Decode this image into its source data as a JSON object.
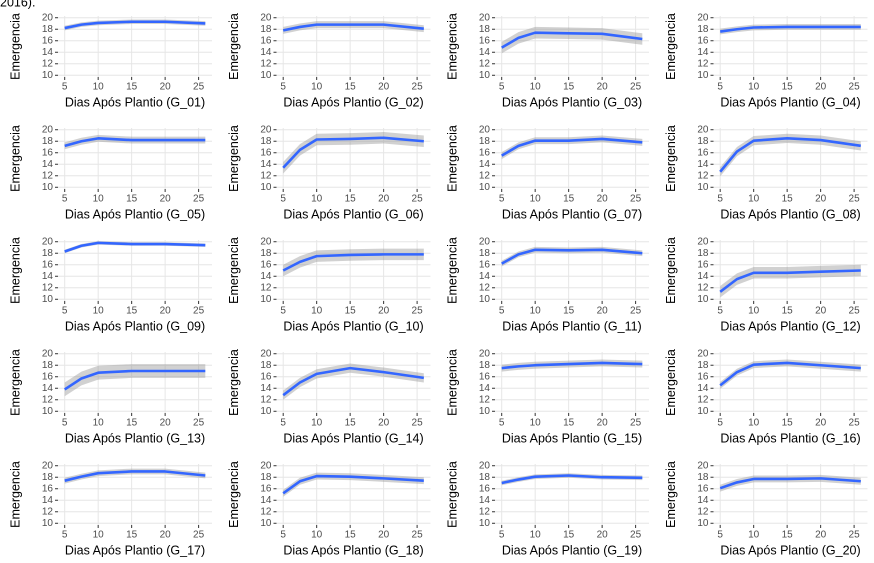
{
  "note": "2016).",
  "chart_data": [
    {
      "type": "line",
      "xlabel": "Dias Após Plantio (G_01)",
      "ylabel": "Emergencia",
      "x": [
        5,
        7.5,
        10,
        15,
        20,
        26
      ],
      "values": [
        18.2,
        18.8,
        19.1,
        19.3,
        19.3,
        19.0
      ],
      "lower": [
        17.8,
        18.4,
        18.7,
        18.9,
        18.9,
        18.6
      ],
      "upper": [
        18.6,
        19.2,
        19.5,
        19.7,
        19.7,
        19.4
      ],
      "color": "#3366ff",
      "xlim": [
        4,
        27
      ],
      "ylim": [
        9.7,
        20.3
      ],
      "xticks": [
        5,
        10,
        15,
        20,
        25
      ],
      "yticks": [
        10,
        12,
        14,
        16,
        18,
        20
      ],
      "grid": true
    },
    {
      "type": "line",
      "xlabel": "Dias Após Plantio (G_02)",
      "ylabel": "Emergencia",
      "x": [
        5,
        7.5,
        10,
        15,
        20,
        26
      ],
      "values": [
        17.8,
        18.4,
        18.8,
        18.8,
        18.8,
        18.1
      ],
      "lower": [
        17.2,
        17.8,
        18.2,
        18.2,
        18.2,
        17.5
      ],
      "upper": [
        18.4,
        19.0,
        19.4,
        19.4,
        19.4,
        18.7
      ],
      "color": "#3366ff",
      "xlim": [
        4,
        27
      ],
      "ylim": [
        9.7,
        20.3
      ],
      "xticks": [
        5,
        10,
        15,
        20,
        25
      ],
      "yticks": [
        10,
        12,
        14,
        16,
        18,
        20
      ],
      "grid": true
    },
    {
      "type": "line",
      "xlabel": "Dias Após Plantio (G_03)",
      "ylabel": "Emergencia",
      "x": [
        5,
        7.5,
        10,
        15,
        20,
        26
      ],
      "values": [
        14.8,
        16.5,
        17.4,
        17.3,
        17.2,
        16.3
      ],
      "lower": [
        13.8,
        15.5,
        16.4,
        16.3,
        16.2,
        15.3
      ],
      "upper": [
        15.8,
        17.5,
        18.4,
        18.3,
        18.2,
        17.3
      ],
      "color": "#3366ff",
      "xlim": [
        4,
        27
      ],
      "ylim": [
        9.7,
        20.3
      ],
      "xticks": [
        5,
        10,
        15,
        20,
        25
      ],
      "yticks": [
        10,
        12,
        14,
        16,
        18,
        20
      ],
      "grid": true
    },
    {
      "type": "line",
      "xlabel": "Dias Após Plantio (G_04)",
      "ylabel": "Emergencia",
      "x": [
        5,
        7.5,
        10,
        15,
        20,
        26
      ],
      "values": [
        17.6,
        18.0,
        18.3,
        18.4,
        18.4,
        18.4
      ],
      "lower": [
        17.1,
        17.5,
        17.8,
        17.9,
        17.9,
        17.9
      ],
      "upper": [
        18.1,
        18.5,
        18.8,
        18.9,
        18.9,
        18.9
      ],
      "color": "#3366ff",
      "xlim": [
        4,
        27
      ],
      "ylim": [
        9.7,
        20.3
      ],
      "xticks": [
        5,
        10,
        15,
        20,
        25
      ],
      "yticks": [
        10,
        12,
        14,
        16,
        18,
        20
      ],
      "grid": true
    },
    {
      "type": "line",
      "xlabel": "Dias Após Plantio (G_05)",
      "ylabel": "Emergencia",
      "x": [
        5,
        7.5,
        10,
        15,
        20,
        26
      ],
      "values": [
        17.2,
        18.0,
        18.5,
        18.2,
        18.2,
        18.2
      ],
      "lower": [
        16.6,
        17.4,
        17.9,
        17.6,
        17.6,
        17.6
      ],
      "upper": [
        17.8,
        18.6,
        19.1,
        18.8,
        18.8,
        18.8
      ],
      "color": "#3366ff",
      "xlim": [
        4,
        27
      ],
      "ylim": [
        9.7,
        20.3
      ],
      "xticks": [
        5,
        10,
        15,
        20,
        25
      ],
      "yticks": [
        10,
        12,
        14,
        16,
        18,
        20
      ],
      "grid": true
    },
    {
      "type": "line",
      "xlabel": "Dias Após Plantio (G_06)",
      "ylabel": "Emergencia",
      "x": [
        5,
        7.5,
        10,
        15,
        20,
        26
      ],
      "values": [
        13.4,
        16.5,
        18.3,
        18.4,
        18.6,
        18.0
      ],
      "lower": [
        12.4,
        15.5,
        17.3,
        17.4,
        17.6,
        17.0
      ],
      "upper": [
        14.4,
        17.5,
        19.3,
        19.4,
        19.6,
        19.0
      ],
      "color": "#3366ff",
      "xlim": [
        4,
        27
      ],
      "ylim": [
        9.7,
        20.3
      ],
      "xticks": [
        5,
        10,
        15,
        20,
        25
      ],
      "yticks": [
        10,
        12,
        14,
        16,
        18,
        20
      ],
      "grid": true
    },
    {
      "type": "line",
      "xlabel": "Dias Após Plantio (G_07)",
      "ylabel": "Emergencia",
      "x": [
        5,
        7.5,
        10,
        15,
        20,
        26
      ],
      "values": [
        15.5,
        17.2,
        18.1,
        18.1,
        18.4,
        17.8
      ],
      "lower": [
        14.9,
        16.6,
        17.5,
        17.5,
        17.8,
        17.2
      ],
      "upper": [
        16.1,
        17.8,
        18.7,
        18.7,
        19.0,
        18.4
      ],
      "color": "#3366ff",
      "xlim": [
        4,
        27
      ],
      "ylim": [
        9.7,
        20.3
      ],
      "xticks": [
        5,
        10,
        15,
        20,
        25
      ],
      "yticks": [
        10,
        12,
        14,
        16,
        18,
        20
      ],
      "grid": true
    },
    {
      "type": "line",
      "xlabel": "Dias Após Plantio (G_08)",
      "ylabel": "Emergencia",
      "x": [
        5,
        7.5,
        10,
        15,
        20,
        26
      ],
      "values": [
        12.7,
        16.2,
        18.1,
        18.5,
        18.2,
        17.2
      ],
      "lower": [
        11.9,
        15.4,
        17.3,
        17.7,
        17.4,
        16.4
      ],
      "upper": [
        13.5,
        17.0,
        18.9,
        19.3,
        19.0,
        18.0
      ],
      "color": "#3366ff",
      "xlim": [
        4,
        27
      ],
      "ylim": [
        9.7,
        20.3
      ],
      "xticks": [
        5,
        10,
        15,
        20,
        25
      ],
      "yticks": [
        10,
        12,
        14,
        16,
        18,
        20
      ],
      "grid": true
    },
    {
      "type": "line",
      "xlabel": "Dias Após Plantio (G_09)",
      "ylabel": "Emergencia",
      "x": [
        5,
        7.5,
        10,
        15,
        20,
        26
      ],
      "values": [
        18.3,
        19.3,
        19.8,
        19.6,
        19.6,
        19.4
      ],
      "lower": [
        18.0,
        19.0,
        19.5,
        19.3,
        19.3,
        19.1
      ],
      "upper": [
        18.6,
        19.6,
        20.1,
        19.9,
        19.9,
        19.7
      ],
      "color": "#3366ff",
      "xlim": [
        4,
        27
      ],
      "ylim": [
        9.7,
        20.3
      ],
      "xticks": [
        5,
        10,
        15,
        20,
        25
      ],
      "yticks": [
        10,
        12,
        14,
        16,
        18,
        20
      ],
      "grid": true
    },
    {
      "type": "line",
      "xlabel": "Dias Após Plantio (G_10)",
      "ylabel": "Emergencia",
      "x": [
        5,
        7.5,
        10,
        15,
        20,
        26
      ],
      "values": [
        15.0,
        16.5,
        17.5,
        17.7,
        17.8,
        17.8
      ],
      "lower": [
        14.0,
        15.5,
        16.5,
        16.7,
        16.8,
        16.8
      ],
      "upper": [
        16.0,
        17.5,
        18.5,
        18.7,
        18.8,
        18.8
      ],
      "color": "#3366ff",
      "xlim": [
        4,
        27
      ],
      "ylim": [
        9.7,
        20.3
      ],
      "xticks": [
        5,
        10,
        15,
        20,
        25
      ],
      "yticks": [
        10,
        12,
        14,
        16,
        18,
        20
      ],
      "grid": true
    },
    {
      "type": "line",
      "xlabel": "Dias Após Plantio (G_11)",
      "ylabel": "Emergencia",
      "x": [
        5,
        7.5,
        10,
        15,
        20,
        26
      ],
      "values": [
        16.2,
        17.8,
        18.6,
        18.5,
        18.6,
        18.0
      ],
      "lower": [
        15.7,
        17.3,
        18.1,
        18.0,
        18.1,
        17.5
      ],
      "upper": [
        16.7,
        18.3,
        19.1,
        19.0,
        19.1,
        18.5
      ],
      "color": "#3366ff",
      "xlim": [
        4,
        27
      ],
      "ylim": [
        9.7,
        20.3
      ],
      "xticks": [
        5,
        10,
        15,
        20,
        25
      ],
      "yticks": [
        10,
        12,
        14,
        16,
        18,
        20
      ],
      "grid": true
    },
    {
      "type": "line",
      "xlabel": "Dias Após Plantio (G_12)",
      "ylabel": "Emergencia",
      "x": [
        5,
        7.5,
        10,
        15,
        20,
        26
      ],
      "values": [
        11.3,
        13.5,
        14.6,
        14.6,
        14.8,
        15.0
      ],
      "lower": [
        10.3,
        12.5,
        13.6,
        13.6,
        13.8,
        14.0
      ],
      "upper": [
        12.3,
        14.5,
        15.6,
        15.6,
        15.8,
        16.0
      ],
      "color": "#3366ff",
      "xlim": [
        4,
        27
      ],
      "ylim": [
        9.7,
        20.3
      ],
      "xticks": [
        5,
        10,
        15,
        20,
        25
      ],
      "yticks": [
        10,
        12,
        14,
        16,
        18,
        20
      ],
      "grid": true
    },
    {
      "type": "line",
      "xlabel": "Dias Após Plantio (G_13)",
      "ylabel": "Emergencia",
      "x": [
        5,
        7.5,
        10,
        15,
        20,
        26
      ],
      "values": [
        13.8,
        15.7,
        16.7,
        17.0,
        17.0,
        17.0
      ],
      "lower": [
        12.6,
        14.5,
        15.5,
        15.8,
        15.8,
        15.8
      ],
      "upper": [
        15.0,
        16.9,
        17.9,
        18.2,
        18.2,
        18.2
      ],
      "color": "#3366ff",
      "xlim": [
        4,
        27
      ],
      "ylim": [
        9.7,
        20.3
      ],
      "xticks": [
        5,
        10,
        15,
        20,
        25
      ],
      "yticks": [
        10,
        12,
        14,
        16,
        18,
        20
      ],
      "grid": true
    },
    {
      "type": "line",
      "xlabel": "Dias Após Plantio (G_14)",
      "ylabel": "Emergencia",
      "x": [
        5,
        7.5,
        10,
        15,
        20,
        26
      ],
      "values": [
        12.8,
        15.0,
        16.5,
        17.5,
        16.8,
        15.8
      ],
      "lower": [
        12.0,
        14.2,
        15.7,
        16.7,
        16.0,
        15.0
      ],
      "upper": [
        13.6,
        15.8,
        17.3,
        18.3,
        17.6,
        16.6
      ],
      "color": "#3366ff",
      "xlim": [
        4,
        27
      ],
      "ylim": [
        9.7,
        20.3
      ],
      "xticks": [
        5,
        10,
        15,
        20,
        25
      ],
      "yticks": [
        10,
        12,
        14,
        16,
        18,
        20
      ],
      "grid": true
    },
    {
      "type": "line",
      "xlabel": "Dias Após Plantio (G_15)",
      "ylabel": "Emergencia",
      "x": [
        5,
        7.5,
        10,
        15,
        20,
        26
      ],
      "values": [
        17.5,
        17.8,
        18.0,
        18.2,
        18.4,
        18.2
      ],
      "lower": [
        16.9,
        17.2,
        17.4,
        17.6,
        17.8,
        17.6
      ],
      "upper": [
        18.1,
        18.4,
        18.6,
        18.8,
        19.0,
        18.8
      ],
      "color": "#3366ff",
      "xlim": [
        4,
        27
      ],
      "ylim": [
        9.7,
        20.3
      ],
      "xticks": [
        5,
        10,
        15,
        20,
        25
      ],
      "yticks": [
        10,
        12,
        14,
        16,
        18,
        20
      ],
      "grid": true
    },
    {
      "type": "line",
      "xlabel": "Dias Após Plantio (G_16)",
      "ylabel": "Emergencia",
      "x": [
        5,
        7.5,
        10,
        15,
        20,
        26
      ],
      "values": [
        14.5,
        16.8,
        18.1,
        18.4,
        18.0,
        17.5
      ],
      "lower": [
        13.9,
        16.2,
        17.5,
        17.8,
        17.4,
        16.9
      ],
      "upper": [
        15.1,
        17.4,
        18.7,
        19.0,
        18.6,
        18.1
      ],
      "color": "#3366ff",
      "xlim": [
        4,
        27
      ],
      "ylim": [
        9.7,
        20.3
      ],
      "xticks": [
        5,
        10,
        15,
        20,
        25
      ],
      "yticks": [
        10,
        12,
        14,
        16,
        18,
        20
      ],
      "grid": true
    },
    {
      "type": "line",
      "xlabel": "Dias Após Plantio (G_17)",
      "ylabel": "Emergencia",
      "x": [
        5,
        7.5,
        10,
        15,
        20,
        26
      ],
      "values": [
        17.4,
        18.1,
        18.7,
        19.0,
        19.0,
        18.3
      ],
      "lower": [
        16.9,
        17.6,
        18.2,
        18.5,
        18.5,
        17.8
      ],
      "upper": [
        17.9,
        18.6,
        19.2,
        19.5,
        19.5,
        18.8
      ],
      "color": "#3366ff",
      "xlim": [
        4,
        27
      ],
      "ylim": [
        9.7,
        20.3
      ],
      "xticks": [
        5,
        10,
        15,
        20,
        25
      ],
      "yticks": [
        10,
        12,
        14,
        16,
        18,
        20
      ],
      "grid": true
    },
    {
      "type": "line",
      "xlabel": "Dias Após Plantio (G_18)",
      "ylabel": "Emergencia",
      "x": [
        5,
        7.5,
        10,
        15,
        20,
        26
      ],
      "values": [
        15.2,
        17.3,
        18.2,
        18.1,
        17.8,
        17.4
      ],
      "lower": [
        14.6,
        16.7,
        17.6,
        17.5,
        17.2,
        16.8
      ],
      "upper": [
        15.8,
        17.9,
        18.8,
        18.7,
        18.4,
        18.0
      ],
      "color": "#3366ff",
      "xlim": [
        4,
        27
      ],
      "ylim": [
        9.7,
        20.3
      ],
      "xticks": [
        5,
        10,
        15,
        20,
        25
      ],
      "yticks": [
        10,
        12,
        14,
        16,
        18,
        20
      ],
      "grid": true
    },
    {
      "type": "line",
      "xlabel": "Dias Após Plantio (G_19)",
      "ylabel": "Emergencia",
      "x": [
        5,
        7.5,
        10,
        15,
        20,
        26
      ],
      "values": [
        17.0,
        17.6,
        18.1,
        18.3,
        18.0,
        17.9
      ],
      "lower": [
        16.6,
        17.2,
        17.7,
        17.9,
        17.6,
        17.5
      ],
      "upper": [
        17.4,
        18.0,
        18.5,
        18.7,
        18.4,
        18.3
      ],
      "color": "#3366ff",
      "xlim": [
        4,
        27
      ],
      "ylim": [
        9.7,
        20.3
      ],
      "xticks": [
        5,
        10,
        15,
        20,
        25
      ],
      "yticks": [
        10,
        12,
        14,
        16,
        18,
        20
      ],
      "grid": true
    },
    {
      "type": "line",
      "xlabel": "Dias Após Plantio (G_20)",
      "ylabel": "Emergencia",
      "x": [
        5,
        7.5,
        10,
        15,
        20,
        26
      ],
      "values": [
        16.1,
        17.1,
        17.7,
        17.7,
        17.8,
        17.3
      ],
      "lower": [
        15.5,
        16.5,
        17.1,
        17.1,
        17.2,
        16.7
      ],
      "upper": [
        16.7,
        17.7,
        18.3,
        18.3,
        18.4,
        17.9
      ],
      "color": "#3366ff",
      "xlim": [
        4,
        27
      ],
      "ylim": [
        9.7,
        20.3
      ],
      "xticks": [
        5,
        10,
        15,
        20,
        25
      ],
      "yticks": [
        10,
        12,
        14,
        16,
        18,
        20
      ],
      "grid": true
    }
  ]
}
